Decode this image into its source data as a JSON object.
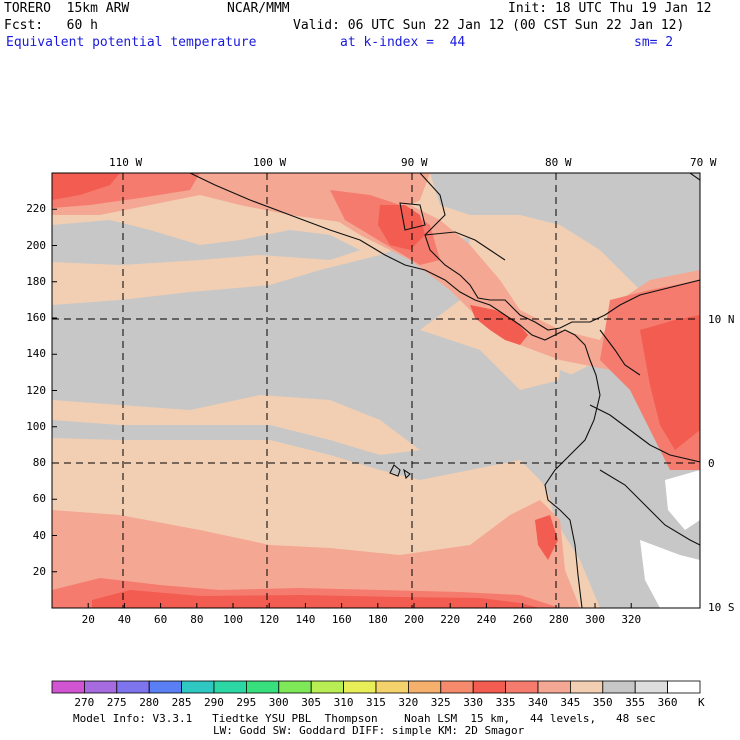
{
  "header": {
    "model": "TORERO  15km ARW",
    "center": "NCAR/MMM",
    "init": "Init: 18 UTC Thu 19 Jan 12",
    "fcst": "Fcst:   60 h",
    "valid": "Valid: 06 UTC Sun 22 Jan 12 (00 CST Sun 22 Jan 12)",
    "field": "Equivalent potential temperature",
    "level": "at k-index =  44",
    "smooth": "sm= 2"
  },
  "map": {
    "lon_labels": [
      "110 W",
      "100 W",
      "90 W",
      "80 W",
      "70 W"
    ],
    "lat_labels": [
      "10 N",
      "0",
      "10 S"
    ],
    "x_ticks": [
      "20",
      "40",
      "60",
      "80",
      "100",
      "120",
      "140",
      "160",
      "180",
      "200",
      "220",
      "240",
      "260",
      "280",
      "300",
      "320"
    ],
    "y_ticks": [
      "20",
      "40",
      "60",
      "80",
      "100",
      "120",
      "140",
      "160",
      "180",
      "200",
      "220"
    ],
    "field_colors": {
      "gray": "#c7c7c7",
      "tan": "#f2cfb3",
      "salmon": "#f4a792",
      "coral": "#f57b6e",
      "red": "#f35c50",
      "white": "#ffffff"
    }
  },
  "colorbar": {
    "labels": [
      "270",
      "275",
      "280",
      "285",
      "290",
      "295",
      "300",
      "305",
      "310",
      "315",
      "320",
      "325",
      "330",
      "335",
      "340",
      "345",
      "350",
      "355",
      "360"
    ],
    "unit": "K",
    "colors": [
      "#d155d3",
      "#a76be0",
      "#7e74ed",
      "#5a7ff5",
      "#2fc7c1",
      "#2bd7a5",
      "#37e07c",
      "#7fe858",
      "#b8ee53",
      "#e8ee57",
      "#f5d36c",
      "#f5b06e",
      "#f58b6c",
      "#f35c50",
      "#f57b6e",
      "#f4a792",
      "#f2cfb3",
      "#c7c7c7",
      "#dedede",
      "#ffffff"
    ]
  },
  "model_info": {
    "line1": "Model Info: V3.3.1   Tiedtke YSU PBL  Thompson    Noah LSM  15 km,   44 levels,   48 sec",
    "line2": "LW: Godd SW: Goddard DIFF: simple KM: 2D Smagor"
  }
}
